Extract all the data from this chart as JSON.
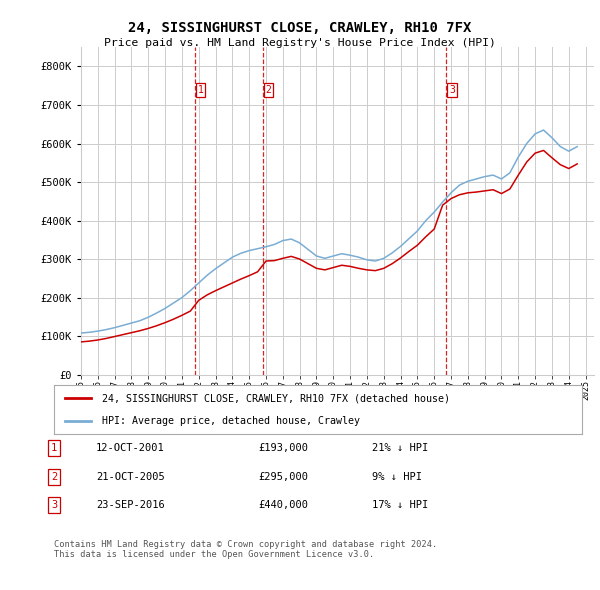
{
  "title": "24, SISSINGHURST CLOSE, CRAWLEY, RH10 7FX",
  "subtitle": "Price paid vs. HM Land Registry's House Price Index (HPI)",
  "legend_label_red": "24, SISSINGHURST CLOSE, CRAWLEY, RH10 7FX (detached house)",
  "legend_label_blue": "HPI: Average price, detached house, Crawley",
  "footer": "Contains HM Land Registry data © Crown copyright and database right 2024.\nThis data is licensed under the Open Government Licence v3.0.",
  "transactions": [
    {
      "num": 1,
      "date": "12-OCT-2001",
      "price": "193,000",
      "hpi_diff": "21% ↓ HPI"
    },
    {
      "num": 2,
      "date": "21-OCT-2005",
      "price": "295,000",
      "hpi_diff": "9% ↓ HPI"
    },
    {
      "num": 3,
      "date": "23-SEP-2016",
      "price": "440,000",
      "hpi_diff": "17% ↓ HPI"
    }
  ],
  "transaction_years": [
    2001.79,
    2005.81,
    2016.73
  ],
  "ylim": [
    0,
    850000
  ],
  "yticks": [
    0,
    100000,
    200000,
    300000,
    400000,
    500000,
    600000,
    700000,
    800000
  ],
  "red_color": "#cc0000",
  "blue_color": "#7aadd4",
  "vline_color": "#cc0000",
  "grid_color": "#cccccc",
  "background_color": "#ffffff",
  "years_hpi": [
    1995.0,
    1995.5,
    1996.0,
    1996.5,
    1997.0,
    1997.5,
    1998.0,
    1998.5,
    1999.0,
    1999.5,
    2000.0,
    2000.5,
    2001.0,
    2001.5,
    2002.0,
    2002.5,
    2003.0,
    2003.5,
    2004.0,
    2004.5,
    2005.0,
    2005.5,
    2006.0,
    2006.5,
    2007.0,
    2007.5,
    2008.0,
    2008.5,
    2009.0,
    2009.5,
    2010.0,
    2010.5,
    2011.0,
    2011.5,
    2012.0,
    2012.5,
    2013.0,
    2013.5,
    2014.0,
    2014.5,
    2015.0,
    2015.5,
    2016.0,
    2016.5,
    2017.0,
    2017.5,
    2018.0,
    2018.5,
    2019.0,
    2019.5,
    2020.0,
    2020.5,
    2021.0,
    2021.5,
    2022.0,
    2022.5,
    2023.0,
    2023.5,
    2024.0,
    2024.5
  ],
  "hpi_values": [
    108000,
    110000,
    113000,
    117000,
    122000,
    128000,
    134000,
    140000,
    149000,
    160000,
    172000,
    186000,
    200000,
    218000,
    238000,
    258000,
    275000,
    290000,
    305000,
    315000,
    322000,
    327000,
    332000,
    338000,
    348000,
    352000,
    342000,
    325000,
    308000,
    302000,
    308000,
    314000,
    310000,
    305000,
    298000,
    295000,
    302000,
    316000,
    333000,
    353000,
    373000,
    400000,
    422000,
    448000,
    472000,
    492000,
    502000,
    508000,
    514000,
    518000,
    508000,
    524000,
    565000,
    600000,
    625000,
    635000,
    615000,
    592000,
    580000,
    592000
  ],
  "red_values": [
    85000,
    87000,
    90000,
    94000,
    99000,
    104000,
    109000,
    114000,
    120000,
    127000,
    135000,
    144000,
    154000,
    165000,
    193000,
    207000,
    218000,
    228000,
    238000,
    248000,
    257000,
    267000,
    295000,
    296000,
    302000,
    307000,
    300000,
    288000,
    276000,
    272000,
    278000,
    284000,
    281000,
    276000,
    272000,
    270000,
    276000,
    288000,
    303000,
    320000,
    336000,
    358000,
    378000,
    440000,
    457000,
    467000,
    472000,
    474000,
    477000,
    480000,
    470000,
    482000,
    518000,
    552000,
    575000,
    582000,
    563000,
    545000,
    535000,
    547000
  ]
}
